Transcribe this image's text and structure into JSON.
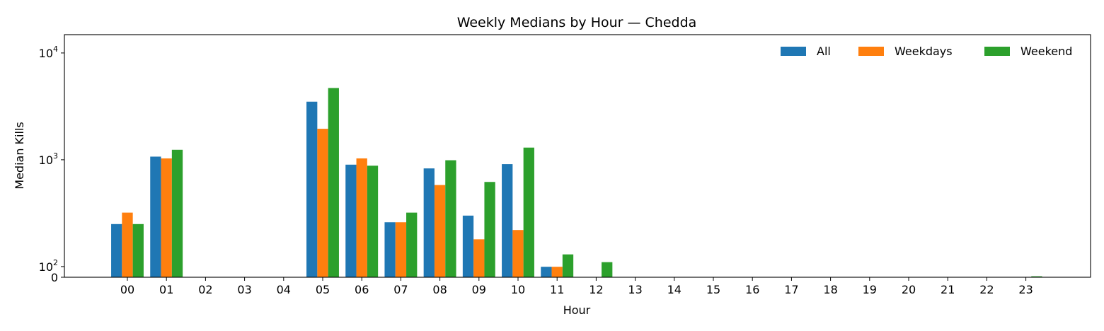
{
  "chart_data": {
    "type": "bar",
    "title": "Weekly Medians by Hour — Chedda",
    "xlabel": "Hour",
    "ylabel": "Median Kills",
    "yscale": "symlog",
    "ylim": [
      0,
      14000
    ],
    "yticks": [
      {
        "value": 0,
        "base": "0",
        "exp": ""
      },
      {
        "value": 100,
        "base": "10",
        "exp": "2"
      },
      {
        "value": 1000,
        "base": "10",
        "exp": "3"
      },
      {
        "value": 10000,
        "base": "10",
        "exp": "4"
      }
    ],
    "categories": [
      "00",
      "01",
      "02",
      "03",
      "04",
      "05",
      "06",
      "07",
      "08",
      "09",
      "10",
      "11",
      "12",
      "13",
      "14",
      "15",
      "16",
      "17",
      "18",
      "19",
      "20",
      "21",
      "22",
      "23"
    ],
    "series": [
      {
        "name": "All",
        "color": "#1f77b4",
        "values": [
          250,
          1070,
          0,
          0,
          0,
          3500,
          900,
          260,
          830,
          300,
          910,
          98,
          0,
          0,
          0,
          0,
          0,
          0,
          0,
          0,
          0,
          0,
          0,
          0
        ]
      },
      {
        "name": "Weekdays",
        "color": "#ff7f0e",
        "values": [
          320,
          1030,
          0,
          0,
          0,
          1950,
          1030,
          260,
          580,
          180,
          220,
          98,
          0,
          0,
          0,
          0,
          0,
          0,
          0,
          0,
          0,
          0,
          0,
          0
        ]
      },
      {
        "name": "Weekend",
        "color": "#2ca02c",
        "values": [
          250,
          1240,
          0,
          0,
          0,
          4700,
          880,
          320,
          990,
          620,
          1300,
          130,
          110,
          1,
          0,
          0,
          0,
          0,
          0,
          0,
          0,
          3,
          1,
          9
        ]
      }
    ],
    "legend": {
      "position": "top-right",
      "columns": 3
    },
    "grid": false
  }
}
